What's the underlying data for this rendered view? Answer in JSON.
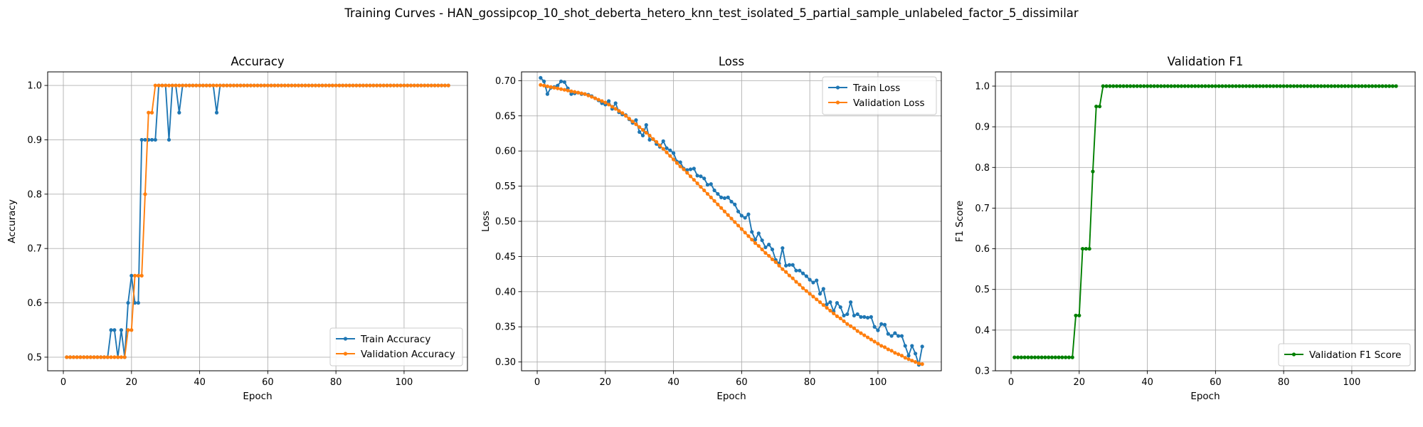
{
  "suptitle": "Training Curves - HAN_gossipcop_10_shot_deberta_hetero_knn_test_isolated_5_partial_sample_unlabeled_factor_5_dissimilar",
  "colors": {
    "train": "#1f77b4",
    "validation": "#ff7f0e",
    "f1": "#008000",
    "grid": "#b0b0b0"
  },
  "chart_data": [
    {
      "type": "line",
      "title": "Accuracy",
      "xlabel": "Epoch",
      "ylabel": "Accuracy",
      "xlim": [
        -4.6,
        118.6
      ],
      "ylim": [
        0.475,
        1.025
      ],
      "xticks": [
        0,
        20,
        40,
        60,
        80,
        100
      ],
      "yticks": [
        0.5,
        0.6,
        0.7,
        0.8,
        0.9,
        1.0
      ],
      "ytick_labels": [
        "0.5",
        "0.6",
        "0.7",
        "0.8",
        "0.9",
        "1.0"
      ],
      "grid": true,
      "legend": "lower right",
      "epochs_from": 1,
      "epochs_to": 113,
      "series": [
        {
          "name": "Train Accuracy",
          "color": "#1f77b4",
          "values": [
            0.5,
            0.5,
            0.5,
            0.5,
            0.5,
            0.5,
            0.5,
            0.5,
            0.5,
            0.5,
            0.5,
            0.5,
            0.5,
            0.55,
            0.55,
            0.5,
            0.55,
            0.5,
            0.6,
            0.65,
            0.6,
            0.6,
            0.9,
            0.9,
            0.9,
            0.9,
            0.9,
            1.0,
            1.0,
            1.0,
            0.9,
            1.0,
            1.0,
            0.95,
            1.0,
            1.0,
            1.0,
            1.0,
            1.0,
            1.0,
            1.0,
            1.0,
            1.0,
            1.0,
            0.95,
            1.0,
            1.0,
            1.0,
            1.0,
            1.0,
            1.0,
            1.0,
            1.0,
            1.0,
            1.0,
            1.0,
            1.0,
            1.0,
            1.0,
            1.0,
            1.0,
            1.0,
            1.0,
            1.0,
            1.0,
            1.0,
            1.0,
            1.0,
            1.0,
            1.0,
            1.0,
            1.0,
            1.0,
            1.0,
            1.0,
            1.0,
            1.0,
            1.0,
            1.0,
            1.0,
            1.0,
            1.0,
            1.0,
            1.0,
            1.0,
            1.0,
            1.0,
            1.0,
            1.0,
            1.0,
            1.0,
            1.0,
            1.0,
            1.0,
            1.0,
            1.0,
            1.0,
            1.0,
            1.0,
            1.0,
            1.0,
            1.0,
            1.0,
            1.0,
            1.0,
            1.0,
            1.0,
            1.0,
            1.0,
            1.0,
            1.0,
            1.0,
            1.0
          ]
        },
        {
          "name": "Validation Accuracy",
          "color": "#ff7f0e",
          "values": [
            0.5,
            0.5,
            0.5,
            0.5,
            0.5,
            0.5,
            0.5,
            0.5,
            0.5,
            0.5,
            0.5,
            0.5,
            0.5,
            0.5,
            0.5,
            0.5,
            0.5,
            0.5,
            0.55,
            0.55,
            0.65,
            0.65,
            0.65,
            0.8,
            0.95,
            0.95,
            1.0,
            1.0,
            1.0,
            1.0,
            1.0,
            1.0,
            1.0,
            1.0,
            1.0,
            1.0,
            1.0,
            1.0,
            1.0,
            1.0,
            1.0,
            1.0,
            1.0,
            1.0,
            1.0,
            1.0,
            1.0,
            1.0,
            1.0,
            1.0,
            1.0,
            1.0,
            1.0,
            1.0,
            1.0,
            1.0,
            1.0,
            1.0,
            1.0,
            1.0,
            1.0,
            1.0,
            1.0,
            1.0,
            1.0,
            1.0,
            1.0,
            1.0,
            1.0,
            1.0,
            1.0,
            1.0,
            1.0,
            1.0,
            1.0,
            1.0,
            1.0,
            1.0,
            1.0,
            1.0,
            1.0,
            1.0,
            1.0,
            1.0,
            1.0,
            1.0,
            1.0,
            1.0,
            1.0,
            1.0,
            1.0,
            1.0,
            1.0,
            1.0,
            1.0,
            1.0,
            1.0,
            1.0,
            1.0,
            1.0,
            1.0,
            1.0,
            1.0,
            1.0,
            1.0,
            1.0,
            1.0,
            1.0,
            1.0,
            1.0,
            1.0,
            1.0,
            1.0
          ]
        }
      ]
    },
    {
      "type": "line",
      "title": "Loss",
      "xlabel": "Epoch",
      "ylabel": "Loss",
      "xlim": [
        -4.6,
        118.6
      ],
      "ylim": [
        0.2875,
        0.7125
      ],
      "xticks": [
        0,
        20,
        40,
        60,
        80,
        100
      ],
      "yticks": [
        0.3,
        0.35,
        0.4,
        0.45,
        0.5,
        0.55,
        0.6,
        0.65,
        0.7
      ],
      "ytick_labels": [
        "0.30",
        "0.35",
        "0.40",
        "0.45",
        "0.50",
        "0.55",
        "0.60",
        "0.65",
        "0.70"
      ],
      "grid": true,
      "legend": "upper right",
      "epochs_from": 1,
      "epochs_to": 113,
      "series": [
        {
          "name": "Train Loss",
          "color": "#1f77b4",
          "values": [
            0.704,
            0.699,
            0.681,
            0.69,
            0.691,
            0.693,
            0.699,
            0.698,
            0.689,
            0.681,
            0.682,
            0.683,
            0.681,
            0.681,
            0.68,
            0.678,
            0.675,
            0.672,
            0.668,
            0.666,
            0.671,
            0.66,
            0.668,
            0.655,
            0.652,
            0.651,
            0.645,
            0.64,
            0.644,
            0.627,
            0.622,
            0.637,
            0.616,
            0.617,
            0.61,
            0.606,
            0.614,
            0.604,
            0.601,
            0.597,
            0.585,
            0.584,
            0.575,
            0.573,
            0.574,
            0.575,
            0.565,
            0.564,
            0.561,
            0.552,
            0.553,
            0.544,
            0.539,
            0.534,
            0.533,
            0.534,
            0.528,
            0.524,
            0.514,
            0.508,
            0.505,
            0.51,
            0.485,
            0.474,
            0.483,
            0.473,
            0.463,
            0.467,
            0.46,
            0.445,
            0.44,
            0.462,
            0.437,
            0.438,
            0.438,
            0.43,
            0.43,
            0.426,
            0.422,
            0.417,
            0.413,
            0.416,
            0.397,
            0.404,
            0.382,
            0.385,
            0.372,
            0.384,
            0.378,
            0.366,
            0.368,
            0.385,
            0.366,
            0.368,
            0.364,
            0.364,
            0.363,
            0.364,
            0.35,
            0.345,
            0.354,
            0.353,
            0.34,
            0.337,
            0.341,
            0.337,
            0.337,
            0.323,
            0.309,
            0.323,
            0.312,
            0.296,
            0.322
          ]
        },
        {
          "name": "Validation Loss",
          "color": "#ff7f0e",
          "values": [
            0.694,
            0.693,
            0.692,
            0.691,
            0.69,
            0.689,
            0.688,
            0.687,
            0.686,
            0.685,
            0.684,
            0.683,
            0.682,
            0.681,
            0.679,
            0.677,
            0.675,
            0.673,
            0.671,
            0.669,
            0.666,
            0.663,
            0.66,
            0.657,
            0.654,
            0.65,
            0.646,
            0.642,
            0.638,
            0.634,
            0.63,
            0.626,
            0.622,
            0.617,
            0.613,
            0.608,
            0.603,
            0.598,
            0.593,
            0.588,
            0.583,
            0.578,
            0.574,
            0.569,
            0.564,
            0.559,
            0.554,
            0.549,
            0.544,
            0.539,
            0.534,
            0.529,
            0.524,
            0.519,
            0.514,
            0.509,
            0.504,
            0.499,
            0.494,
            0.489,
            0.484,
            0.479,
            0.474,
            0.469,
            0.465,
            0.46,
            0.455,
            0.451,
            0.446,
            0.442,
            0.437,
            0.432,
            0.428,
            0.423,
            0.419,
            0.414,
            0.41,
            0.405,
            0.401,
            0.397,
            0.393,
            0.389,
            0.385,
            0.381,
            0.377,
            0.373,
            0.369,
            0.365,
            0.362,
            0.358,
            0.354,
            0.351,
            0.348,
            0.344,
            0.341,
            0.338,
            0.335,
            0.332,
            0.329,
            0.326,
            0.323,
            0.321,
            0.318,
            0.316,
            0.313,
            0.311,
            0.309,
            0.306,
            0.304,
            0.302,
            0.3,
            0.298,
            0.297
          ]
        }
      ]
    },
    {
      "type": "line",
      "title": "Validation F1",
      "xlabel": "Epoch",
      "ylabel": "F1 Score",
      "xlim": [
        -4.6,
        118.6
      ],
      "ylim": [
        0.3,
        1.035
      ],
      "xticks": [
        0,
        20,
        40,
        60,
        80,
        100
      ],
      "yticks": [
        0.3,
        0.4,
        0.5,
        0.6,
        0.7,
        0.8,
        0.9,
        1.0
      ],
      "ytick_labels": [
        "0.3",
        "0.4",
        "0.5",
        "0.6",
        "0.7",
        "0.8",
        "0.9",
        "1.0"
      ],
      "grid": true,
      "legend": "lower right",
      "epochs_from": 1,
      "epochs_to": 113,
      "series": [
        {
          "name": "Validation F1 Score",
          "color": "#008000",
          "values": [
            0.333,
            0.333,
            0.333,
            0.333,
            0.333,
            0.333,
            0.333,
            0.333,
            0.333,
            0.333,
            0.333,
            0.333,
            0.333,
            0.333,
            0.333,
            0.333,
            0.333,
            0.333,
            0.436,
            0.436,
            0.6,
            0.6,
            0.6,
            0.79,
            0.95,
            0.95,
            1.0,
            1.0,
            1.0,
            1.0,
            1.0,
            1.0,
            1.0,
            1.0,
            1.0,
            1.0,
            1.0,
            1.0,
            1.0,
            1.0,
            1.0,
            1.0,
            1.0,
            1.0,
            1.0,
            1.0,
            1.0,
            1.0,
            1.0,
            1.0,
            1.0,
            1.0,
            1.0,
            1.0,
            1.0,
            1.0,
            1.0,
            1.0,
            1.0,
            1.0,
            1.0,
            1.0,
            1.0,
            1.0,
            1.0,
            1.0,
            1.0,
            1.0,
            1.0,
            1.0,
            1.0,
            1.0,
            1.0,
            1.0,
            1.0,
            1.0,
            1.0,
            1.0,
            1.0,
            1.0,
            1.0,
            1.0,
            1.0,
            1.0,
            1.0,
            1.0,
            1.0,
            1.0,
            1.0,
            1.0,
            1.0,
            1.0,
            1.0,
            1.0,
            1.0,
            1.0,
            1.0,
            1.0,
            1.0,
            1.0,
            1.0,
            1.0,
            1.0,
            1.0,
            1.0,
            1.0,
            1.0,
            1.0,
            1.0,
            1.0,
            1.0,
            1.0,
            1.0
          ]
        }
      ]
    }
  ]
}
